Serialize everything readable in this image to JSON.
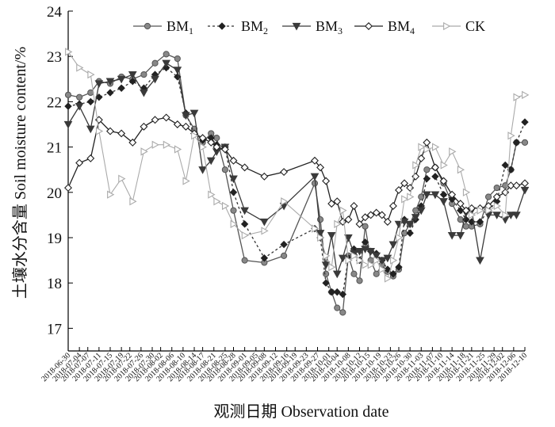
{
  "chart_data": {
    "type": "line",
    "xlabel": "观测日期 Observation date",
    "ylabel": "土壤水分含量 Soil moisture content/%",
    "ylim": [
      16.5,
      24
    ],
    "yticks": [
      17,
      18,
      19,
      20,
      21,
      22,
      23,
      24
    ],
    "grid": false,
    "legend_position": "top",
    "xtick_labels": [
      "2018-06-30",
      "2018-07-04",
      "2018-07-07",
      "2018-07-11",
      "2018-07-15",
      "2018-07-19",
      "2018-07-22",
      "2018-07-26",
      "2018-07-30",
      "2018-08-02",
      "2018-08-06",
      "2018-08-10",
      "2018-08-14",
      "2018-08-17",
      "2018-08-21",
      "2018-08-25",
      "2018-08-28",
      "2018-09-01",
      "2018-09-05",
      "2018-09-08",
      "2018-09-12",
      "2018-09-16",
      "2018-09-19",
      "2018-09-23",
      "2018-09-27",
      "2018-10-01",
      "2018-10-04",
      "2018-10-08",
      "2018-10-12",
      "2018-10-15",
      "2018-10-19",
      "2018-10-23",
      "2018-10-26",
      "2018-10-30",
      "2018-11-03",
      "2018-11-07",
      "2018-11-10",
      "2018-11-14",
      "2018-11-18",
      "2018-11-21",
      "2018-11-25",
      "2018-11-29",
      "2018-12-02",
      "2018-12-06",
      "2018-12-10"
    ],
    "x": [
      "2018-06-30",
      "2018-07-04",
      "2018-07-08",
      "2018-07-11",
      "2018-07-15",
      "2018-07-19",
      "2018-07-23",
      "2018-07-27",
      "2018-07-31",
      "2018-08-04",
      "2018-08-08",
      "2018-08-11",
      "2018-08-14",
      "2018-08-17",
      "2018-08-20",
      "2018-08-22",
      "2018-08-25",
      "2018-08-28",
      "2018-09-01",
      "2018-09-08",
      "2018-09-15",
      "2018-09-26",
      "2018-09-28",
      "2018-09-30",
      "2018-10-02",
      "2018-10-04",
      "2018-10-06",
      "2018-10-08",
      "2018-10-10",
      "2018-10-12",
      "2018-10-14",
      "2018-10-16",
      "2018-10-18",
      "2018-10-20",
      "2018-10-22",
      "2018-10-24",
      "2018-10-26",
      "2018-10-28",
      "2018-10-30",
      "2018-11-01",
      "2018-11-03",
      "2018-11-05",
      "2018-11-08",
      "2018-11-11",
      "2018-11-14",
      "2018-11-17",
      "2018-11-19",
      "2018-11-21",
      "2018-11-24",
      "2018-11-27",
      "2018-11-30",
      "2018-12-03",
      "2018-12-05",
      "2018-12-07",
      "2018-12-10"
    ],
    "series": [
      {
        "name": "BM",
        "subscript": "1",
        "color": "#555555",
        "marker": "circle",
        "dash": "solid",
        "values": [
          22.15,
          22.1,
          22.2,
          22.45,
          22.4,
          22.55,
          22.5,
          22.6,
          22.85,
          23.05,
          22.95,
          21.7,
          21.4,
          21.1,
          21.3,
          21.2,
          20.5,
          19.6,
          18.5,
          18.45,
          18.6,
          20.2,
          19.4,
          18.2,
          17.8,
          17.45,
          17.35,
          18.6,
          18.2,
          18.05,
          19.25,
          18.5,
          18.2,
          18.4,
          18.25,
          18.15,
          18.3,
          19.1,
          19.3,
          19.6,
          19.9,
          20.5,
          20.55,
          20.2,
          19.75,
          19.4,
          19.25,
          19.25,
          19.3,
          19.9,
          20.1,
          20.15,
          20.5,
          21.1,
          21.1
        ]
      },
      {
        "name": "BM",
        "subscript": "2",
        "color": "#333333",
        "marker": "diamond-filled",
        "dash": "3,3",
        "values": [
          21.9,
          21.95,
          22.0,
          22.1,
          22.2,
          22.3,
          22.45,
          22.3,
          22.6,
          22.75,
          22.55,
          21.75,
          21.3,
          21.15,
          21.2,
          21.05,
          21.0,
          20.0,
          19.3,
          18.55,
          18.85,
          19.2,
          19.0,
          18.0,
          17.8,
          17.8,
          17.75,
          18.55,
          18.75,
          18.5,
          18.9,
          18.7,
          18.65,
          18.5,
          18.3,
          18.2,
          18.35,
          19.4,
          19.1,
          19.4,
          19.7,
          20.3,
          20.35,
          19.95,
          19.85,
          19.6,
          19.4,
          19.35,
          19.35,
          19.6,
          19.8,
          20.6,
          20.5,
          21.1,
          21.55
        ]
      },
      {
        "name": "BM",
        "subscript": "3",
        "color": "#3a3a3a",
        "marker": "triangle-down",
        "dash": "solid",
        "values": [
          21.5,
          21.9,
          21.4,
          22.4,
          22.45,
          22.5,
          22.6,
          22.2,
          22.5,
          22.85,
          22.7,
          21.7,
          21.75,
          20.5,
          20.7,
          20.9,
          21.0,
          20.3,
          19.6,
          19.35,
          19.7,
          20.35,
          19.1,
          18.4,
          19.05,
          18.2,
          18.55,
          19.0,
          18.65,
          18.7,
          18.75,
          18.7,
          18.6,
          18.5,
          18.55,
          18.85,
          19.3,
          19.35,
          19.3,
          19.45,
          19.6,
          19.95,
          19.95,
          19.8,
          19.05,
          19.05,
          19.55,
          19.6,
          18.5,
          19.5,
          19.5,
          19.4,
          19.5,
          19.5,
          20.05
        ]
      },
      {
        "name": "BM",
        "subscript": "4",
        "color": "#222222",
        "marker": "diamond-open",
        "dash": "solid",
        "values": [
          20.1,
          20.65,
          20.75,
          21.6,
          21.35,
          21.3,
          21.1,
          21.45,
          21.6,
          21.65,
          21.5,
          21.45,
          21.3,
          21.2,
          21.1,
          21.0,
          20.95,
          20.7,
          20.55,
          20.35,
          20.45,
          20.7,
          20.55,
          20.25,
          19.75,
          19.8,
          19.35,
          19.4,
          19.7,
          19.3,
          19.45,
          19.5,
          19.55,
          19.5,
          19.35,
          19.7,
          20.05,
          20.2,
          20.1,
          20.35,
          20.75,
          21.1,
          20.55,
          20.25,
          19.95,
          19.75,
          19.6,
          19.65,
          19.65,
          19.7,
          19.9,
          20.0,
          20.15,
          20.15,
          20.2
        ]
      },
      {
        "name": "CK",
        "subscript": "",
        "color": "#aaaaaa",
        "marker": "triangle-right-open",
        "dash": "solid",
        "values": [
          23.1,
          22.75,
          22.6,
          21.35,
          19.95,
          20.3,
          19.8,
          20.9,
          21.05,
          21.05,
          20.95,
          20.25,
          21.25,
          21.0,
          19.95,
          19.8,
          19.7,
          19.3,
          19.05,
          19.15,
          19.8,
          19.2,
          19.0,
          18.6,
          18.35,
          19.3,
          19.6,
          18.5,
          18.6,
          18.5,
          18.4,
          18.4,
          18.5,
          18.3,
          18.1,
          18.5,
          19.0,
          19.85,
          19.9,
          20.6,
          21.0,
          20.95,
          21.0,
          20.6,
          20.9,
          20.5,
          20.0,
          19.5,
          19.6,
          19.6,
          19.7,
          19.5,
          21.25,
          22.1,
          22.15
        ]
      }
    ]
  }
}
